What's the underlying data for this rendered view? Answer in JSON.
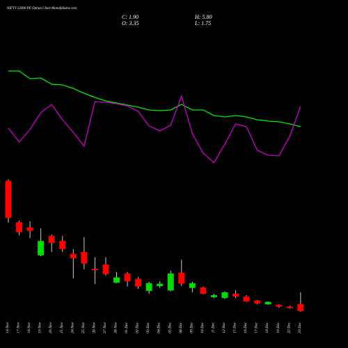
{
  "chart_data": {
    "type": "candlestick",
    "title": "NIFTY 22000  PE Option  Chart ManafaSutra.com",
    "readout": [
      "C: 1.90",
      "H: 5.80",
      "O: 3.35",
      "L: 1.75"
    ],
    "categories": [
      "14 Nov",
      "17 Nov",
      "18 Nov",
      "19 Nov",
      "20 Nov",
      "21 Nov",
      "24 Nov",
      "25 Nov",
      "26 Nov",
      "27 Nov",
      "28 Nov",
      "01 Dec",
      "02 Dec",
      "03 Dec",
      "04 Dec",
      "05 Dec",
      "08 Dec",
      "09 Dec",
      "10 Dec",
      "11 Dec",
      "12 Dec",
      "15 Dec",
      "16 Dec",
      "17 Dec",
      "18 Dec",
      "19 Dec",
      "22 Dec",
      "23 Dec"
    ],
    "open": [
      29.0,
      20.4,
      19.3,
      13.5,
      17.5,
      16.5,
      13.8,
      14.2,
      10.7,
      11.6,
      7.8,
      9.7,
      8.6,
      6.1,
      7.1,
      6.2,
      9.9,
      6.7,
      6.8,
      4.8,
      4.6,
      5.5,
      4.9,
      4.1,
      3.3,
      3.2,
      2.8,
      3.35
    ],
    "high": [
      29.3,
      20.7,
      20.6,
      19.1,
      17.8,
      17.5,
      14.8,
      17.3,
      13.1,
      13.1,
      10.0,
      10.0,
      9.0,
      8.0,
      8.1,
      10.3,
      12.6,
      8.0,
      7.0,
      5.5,
      6.0,
      6.2,
      5.2,
      4.2,
      3.9,
      3.3,
      3.0,
      5.8
    ],
    "low": [
      20.3,
      17.7,
      17.1,
      13.3,
      14.2,
      14.2,
      8.7,
      10.6,
      7.5,
      9.3,
      7.7,
      7.0,
      6.5,
      5.5,
      6.7,
      6.0,
      7.1,
      5.8,
      5.4,
      4.6,
      4.4,
      4.6,
      3.8,
      3.3,
      3.2,
      2.6,
      2.4,
      1.75
    ],
    "close": [
      21.3,
      18.3,
      18.6,
      16.5,
      16.1,
      14.8,
      12.9,
      11.8,
      10.4,
      9.6,
      8.9,
      8.1,
      7.0,
      7.7,
      7.6,
      9.7,
      7.6,
      7.7,
      5.5,
      5.2,
      5.8,
      4.9,
      3.9,
      3.5,
      3.8,
      2.8,
      2.5,
      1.9
    ],
    "up_color": "#00dd00",
    "down_color": "#ff0000",
    "ylim": [
      0,
      30
    ],
    "y2lim": [
      0,
      100
    ],
    "series": [
      {
        "color": "#00ee00",
        "axis": "y2",
        "values": [
          74,
          74,
          68.5,
          69,
          64.5,
          64,
          61.5,
          58,
          55,
          52.5,
          51,
          49.5,
          48,
          46,
          45.5,
          46,
          50,
          46,
          46,
          42,
          41,
          42,
          41,
          39,
          38,
          37.5,
          36,
          34
        ]
      },
      {
        "color": "#cc00cc",
        "axis": "y2",
        "values": [
          33,
          23,
          32,
          44,
          50,
          39,
          30,
          20,
          52,
          51.5,
          50.5,
          49,
          45,
          34.5,
          31,
          35,
          56,
          29,
          15,
          8,
          21.5,
          36,
          34,
          17,
          13.5,
          13,
          27,
          48.5
        ]
      }
    ]
  }
}
